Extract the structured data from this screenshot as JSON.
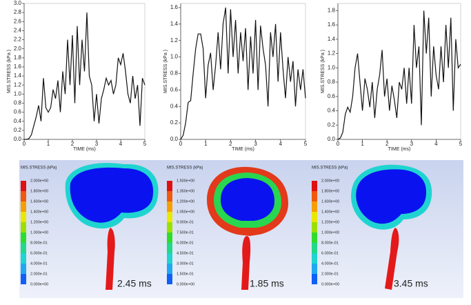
{
  "chart_data": [
    {
      "type": "line",
      "xlabel": "TIME (ms)",
      "ylabel": "MIS.STRESS (kPa )",
      "xlim": [
        0,
        5
      ],
      "xticks": [
        0,
        1,
        2,
        3,
        4,
        5
      ],
      "ylim": [
        0,
        3
      ],
      "yticks": [
        {
          "value": 0,
          "label": "0.0"
        },
        {
          "value": 0.2,
          "label": "0.2"
        },
        {
          "value": 0.4,
          "label": "0.4"
        },
        {
          "value": 0.6,
          "label": "0.6"
        },
        {
          "value": 0.8,
          "label": "0.8"
        },
        {
          "value": 1,
          "label": "1.0"
        },
        {
          "value": 1.2,
          "label": "1.2"
        },
        {
          "value": 1.4,
          "label": "1.4"
        },
        {
          "value": 1.6,
          "label": "1.6"
        },
        {
          "value": 1.8,
          "label": "1.8"
        },
        {
          "value": 2,
          "label": "2.0"
        },
        {
          "value": 2.2,
          "label": "2.2"
        },
        {
          "value": 2.4,
          "label": "2.4"
        },
        {
          "value": 2.6,
          "label": "2.6"
        },
        {
          "value": 2.8,
          "label": "2.8"
        },
        {
          "value": 3,
          "label": "3.0"
        }
      ],
      "color": "#111111",
      "x": [
        0,
        0.1,
        0.2,
        0.3,
        0.4,
        0.5,
        0.6,
        0.7,
        0.8,
        0.9,
        1,
        1.1,
        1.2,
        1.3,
        1.4,
        1.5,
        1.6,
        1.7,
        1.8,
        1.9,
        2,
        2.1,
        2.2,
        2.3,
        2.4,
        2.5,
        2.6,
        2.7,
        2.8,
        2.9,
        3,
        3.1,
        3.2,
        3.3,
        3.4,
        3.5,
        3.6,
        3.7,
        3.8,
        3.9,
        4,
        4.1,
        4.2,
        4.3,
        4.4,
        4.5,
        4.6,
        4.7,
        4.8,
        4.9,
        5
      ],
      "values": [
        0,
        0,
        0.02,
        0.1,
        0.3,
        0.5,
        0.75,
        0.4,
        1.35,
        0.7,
        0.6,
        0.7,
        1.1,
        0.9,
        1.3,
        0.6,
        1.5,
        1.0,
        2.2,
        1.2,
        2.3,
        0.8,
        2.5,
        1.2,
        2.2,
        1.5,
        2.8,
        1.4,
        1.2,
        0.4,
        1.0,
        0.35,
        0.9,
        1.1,
        1.35,
        1.2,
        1.3,
        1.0,
        1.2,
        1.8,
        1.65,
        1.9,
        1.5,
        1.0,
        0.8,
        1.4,
        0.9,
        1.2,
        0.3,
        1.35,
        1.2
      ]
    },
    {
      "type": "line",
      "xlabel": "TIME (ms)",
      "ylabel": "MIS.STRESS (kPa )",
      "xlim": [
        0,
        5
      ],
      "xticks": [
        0,
        1,
        2,
        3,
        4,
        5
      ],
      "ylim": [
        0,
        1.65
      ],
      "yticks": [
        {
          "value": 0,
          "label": "0.0"
        },
        {
          "value": 0.2,
          "label": "0.2"
        },
        {
          "value": 0.4,
          "label": "0.4"
        },
        {
          "value": 0.6,
          "label": "0.6"
        },
        {
          "value": 0.8,
          "label": "0.8"
        },
        {
          "value": 1,
          "label": "1.0"
        },
        {
          "value": 1.2,
          "label": "1.2"
        },
        {
          "value": 1.4,
          "label": "1.4"
        },
        {
          "value": 1.6,
          "label": "1.6"
        }
      ],
      "color": "#111111",
      "x": [
        0,
        0.1,
        0.2,
        0.3,
        0.4,
        0.5,
        0.6,
        0.7,
        0.8,
        0.9,
        1,
        1.1,
        1.2,
        1.3,
        1.4,
        1.5,
        1.6,
        1.7,
        1.8,
        1.9,
        2,
        2.1,
        2.2,
        2.3,
        2.4,
        2.5,
        2.6,
        2.7,
        2.8,
        2.9,
        3,
        3.1,
        3.2,
        3.3,
        3.4,
        3.5,
        3.6,
        3.7,
        3.8,
        3.9,
        4,
        4.1,
        4.2,
        4.3,
        4.4,
        4.5,
        4.6,
        4.7,
        4.8,
        4.9,
        5
      ],
      "values": [
        0,
        0.05,
        0.2,
        0.45,
        0.47,
        0.8,
        1.1,
        1.28,
        1.28,
        1.1,
        0.5,
        0.9,
        1.05,
        0.6,
        0.9,
        1.3,
        0.85,
        1.4,
        1.6,
        0.8,
        1.58,
        1.0,
        1.45,
        0.8,
        1.3,
        0.95,
        1.35,
        0.6,
        1.25,
        0.8,
        1.45,
        0.6,
        1.38,
        1.1,
        0.9,
        0.4,
        1.3,
        1.0,
        1.4,
        0.7,
        1.3,
        0.85,
        0.5,
        1.0,
        0.7,
        0.95,
        0.4,
        0.85,
        0.6,
        0.85,
        0.5
      ]
    },
    {
      "type": "line",
      "xlabel": "TIME (ms)",
      "ylabel": "MIS.STRESS (kPa )",
      "xlim": [
        0,
        5
      ],
      "xticks": [
        0,
        1,
        2,
        3,
        4,
        5
      ],
      "ylim": [
        0,
        1.9
      ],
      "yticks": [
        {
          "value": 0,
          "label": "0.0"
        },
        {
          "value": 0.2,
          "label": "0.2"
        },
        {
          "value": 0.4,
          "label": "0.4"
        },
        {
          "value": 0.6,
          "label": "0.6"
        },
        {
          "value": 0.8,
          "label": "0.8"
        },
        {
          "value": 1,
          "label": "1.0"
        },
        {
          "value": 1.2,
          "label": "1.2"
        },
        {
          "value": 1.4,
          "label": "1.4"
        },
        {
          "value": 1.6,
          "label": "1.6"
        },
        {
          "value": 1.8,
          "label": "1.8"
        }
      ],
      "color": "#111111",
      "x": [
        0,
        0.1,
        0.2,
        0.3,
        0.4,
        0.5,
        0.6,
        0.7,
        0.8,
        0.9,
        1,
        1.1,
        1.2,
        1.3,
        1.4,
        1.5,
        1.6,
        1.7,
        1.8,
        1.9,
        2,
        2.1,
        2.2,
        2.3,
        2.4,
        2.5,
        2.6,
        2.7,
        2.8,
        2.9,
        3,
        3.1,
        3.2,
        3.3,
        3.4,
        3.5,
        3.6,
        3.7,
        3.8,
        3.9,
        4,
        4.1,
        4.2,
        4.3,
        4.4,
        4.5,
        4.6,
        4.7,
        4.8,
        4.9,
        5
      ],
      "values": [
        0,
        0.02,
        0.1,
        0.35,
        0.45,
        0.38,
        0.6,
        1.0,
        1.2,
        0.8,
        0.4,
        0.85,
        0.7,
        0.45,
        0.8,
        0.3,
        0.7,
        0.9,
        1.25,
        0.6,
        0.85,
        0.4,
        0.75,
        0.55,
        0.3,
        0.8,
        0.7,
        1.0,
        0.5,
        1.0,
        0.5,
        1.6,
        1.0,
        1.3,
        0.2,
        1.8,
        1.2,
        1.7,
        0.6,
        1.3,
        0.9,
        0.7,
        1.3,
        0.8,
        1.6,
        1.0,
        1.7,
        0.4,
        1.4,
        1.0,
        1.05
      ]
    }
  ],
  "contour_panels": [
    {
      "title": "MIS.STRESS (kPa)",
      "time": "2.45 ms",
      "levels": [
        "2.000e+00",
        "1.800e+00",
        "1.600e+00",
        "1.400e+00",
        "1.200e+00",
        "1.000e+00",
        "8.000e-01",
        "6.000e-01",
        "4.000e-01",
        "2.000e-01",
        "0.000e+00"
      ]
    },
    {
      "title": "MIS.STRESS (kPa)",
      "time": "1.85 ms",
      "levels": [
        "1.500e+00",
        "1.350e+00",
        "1.200e+00",
        "1.050e+00",
        "9.000e-01",
        "7.500e-01",
        "6.000e-01",
        "4.500e-01",
        "3.000e-01",
        "1.500e-01",
        "0.000e+00"
      ]
    },
    {
      "title": "MIS.STRESS (kPa)",
      "time": "3.45 ms",
      "levels": [
        "2.000e+00",
        "1.800e+00",
        "1.600e+00",
        "1.400e+00",
        "1.200e+00",
        "1.000e+00",
        "8.000e-01",
        "6.000e-01",
        "4.000e-01",
        "2.000e-01",
        "0.000e+00"
      ]
    }
  ]
}
